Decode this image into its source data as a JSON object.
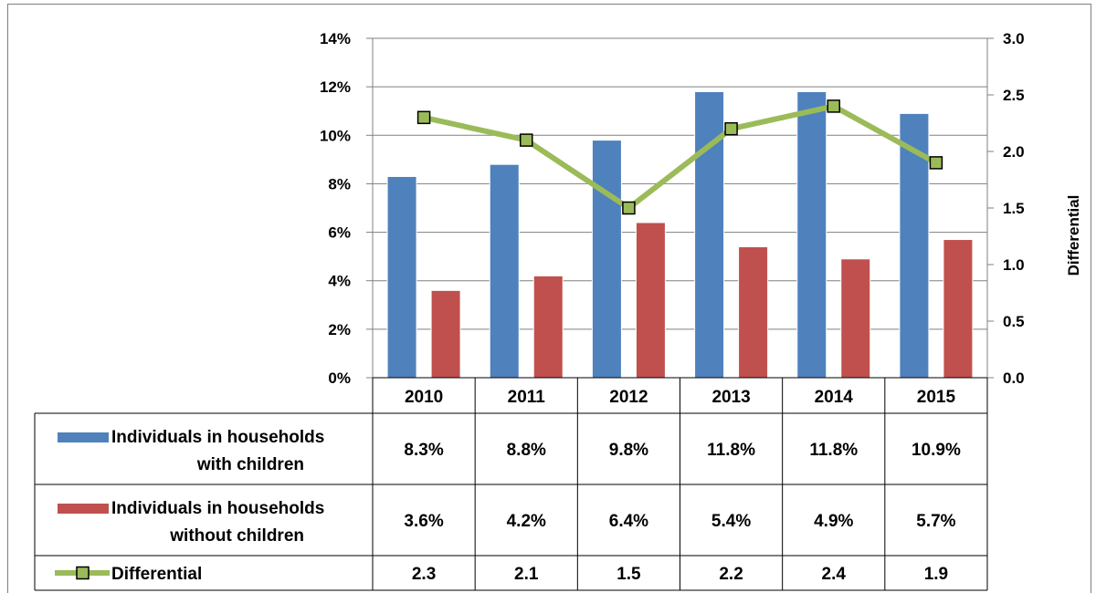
{
  "page_title": "(",
  "chart_data": {
    "type": "bar",
    "categories": [
      "2010",
      "2011",
      "2012",
      "2013",
      "2014",
      "2015"
    ],
    "series": [
      {
        "name": "Individuals in households with children",
        "legend_lines": [
          "Individuals in households",
          "with children"
        ],
        "kind": "bar",
        "axis": "left",
        "color": "#4f81bd",
        "values": [
          8.3,
          8.8,
          9.8,
          11.8,
          11.8,
          10.9
        ],
        "labels": [
          "8.3%",
          "8.8%",
          "9.8%",
          "11.8%",
          "11.8%",
          "10.9%"
        ]
      },
      {
        "name": "Individuals in households without children",
        "legend_lines": [
          "Individuals in households",
          "without children"
        ],
        "kind": "bar",
        "axis": "left",
        "color": "#c0504d",
        "values": [
          3.6,
          4.2,
          6.4,
          5.4,
          4.9,
          5.7
        ],
        "labels": [
          "3.6%",
          "4.2%",
          "6.4%",
          "5.4%",
          "4.9%",
          "5.7%"
        ]
      },
      {
        "name": "Differential",
        "legend_lines": [
          "Differential"
        ],
        "kind": "line",
        "axis": "right",
        "color": "#9bbb59",
        "marker_color": "#9bbb59",
        "values": [
          2.3,
          2.1,
          1.5,
          2.2,
          2.4,
          1.9
        ],
        "labels": [
          "2.3",
          "2.1",
          "1.5",
          "2.2",
          "2.4",
          "1.9"
        ]
      }
    ],
    "y_left": {
      "range": [
        0,
        14
      ],
      "ticks": [
        0,
        2,
        4,
        6,
        8,
        10,
        12,
        14
      ],
      "tick_labels": [
        "0%",
        "2%",
        "4%",
        "6%",
        "8%",
        "10%",
        "12%",
        "14%"
      ]
    },
    "y_right": {
      "label": "Differential",
      "range": [
        0,
        3
      ],
      "ticks": [
        0,
        0.5,
        1,
        1.5,
        2,
        2.5,
        3
      ],
      "tick_labels": [
        "0.0",
        "0.5",
        "1.0",
        "1.5",
        "2.0",
        "2.5",
        "3.0"
      ]
    },
    "grid": true,
    "data_table": true
  }
}
